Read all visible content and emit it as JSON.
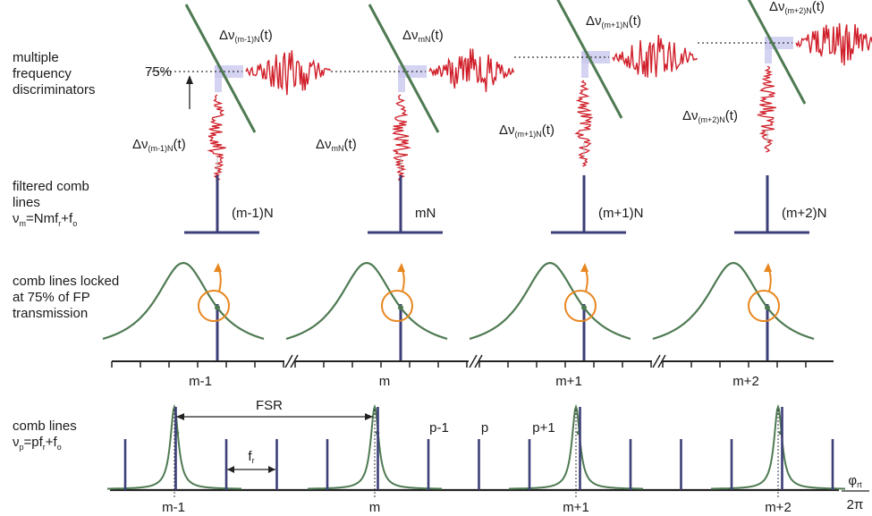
{
  "row_labels": {
    "discriminators": [
      "multiple",
      "frequency",
      "discriminators"
    ],
    "filtered": {
      "line1": "filtered comb",
      "line2": "lines",
      "nu": "ν",
      "nu_sub": "m",
      "eq_a": "=Nmf",
      "eq_sub_r": "r",
      "eq_b": "+f",
      "eq_sub_o": "o"
    },
    "locked": [
      "comb lines locked",
      "at 75% of FP",
      "transmission"
    ],
    "comb": {
      "line1": "comb lines",
      "nu": "ν",
      "nu_sub": "p",
      "eq_a": "=pf",
      "eq_sub_r": "r",
      "eq_b": "+f",
      "eq_sub_o": "o"
    }
  },
  "discriminators": [
    {
      "top_main": "Δν",
      "top_sub": "(m-1)N",
      "top_tail": "(t)",
      "bot_main": "Δν",
      "bot_sub": "(m-1)N",
      "bot_tail": "(t)"
    },
    {
      "top_main": "Δν",
      "top_sub": "mN",
      "top_tail": "(t)",
      "bot_main": "Δν",
      "bot_sub": "mN",
      "bot_tail": "(t)"
    },
    {
      "top_main": "Δν",
      "top_sub": "(m+1)N",
      "top_tail": "(t)",
      "bot_main": "Δν",
      "bot_sub": "(m+1)N",
      "bot_tail": "(t)"
    },
    {
      "top_main": "Δν",
      "top_sub": "(m+2)N",
      "top_tail": "(t)",
      "bot_main": "Δν",
      "bot_sub": "(m+2)N",
      "bot_tail": "(t)"
    }
  ],
  "percent_label": "75%",
  "filtered_lines": [
    "(m-1)N",
    "mN",
    "(m+1)N",
    "(m+2)N"
  ],
  "locked_axis_ticks": [
    "m-1",
    "m",
    "m+1",
    "m+2"
  ],
  "comb_axis": {
    "ticks": [
      "m-1",
      "m",
      "m+1",
      "m+2"
    ],
    "fsr": "FSR",
    "fr_main": "f",
    "fr_sub": "r",
    "p_labels": [
      "p-1",
      "p",
      "p+1"
    ],
    "axis_num": "φ",
    "axis_num_sub": "rt",
    "axis_den": "2π"
  },
  "colors": {
    "noise_red": "#d01f2a",
    "curve_green": "#4e7a52",
    "comb_line": "#3d3f78",
    "lock_circle": "#e8861f",
    "highlight": "#c9c8ee",
    "axis": "#222222"
  }
}
